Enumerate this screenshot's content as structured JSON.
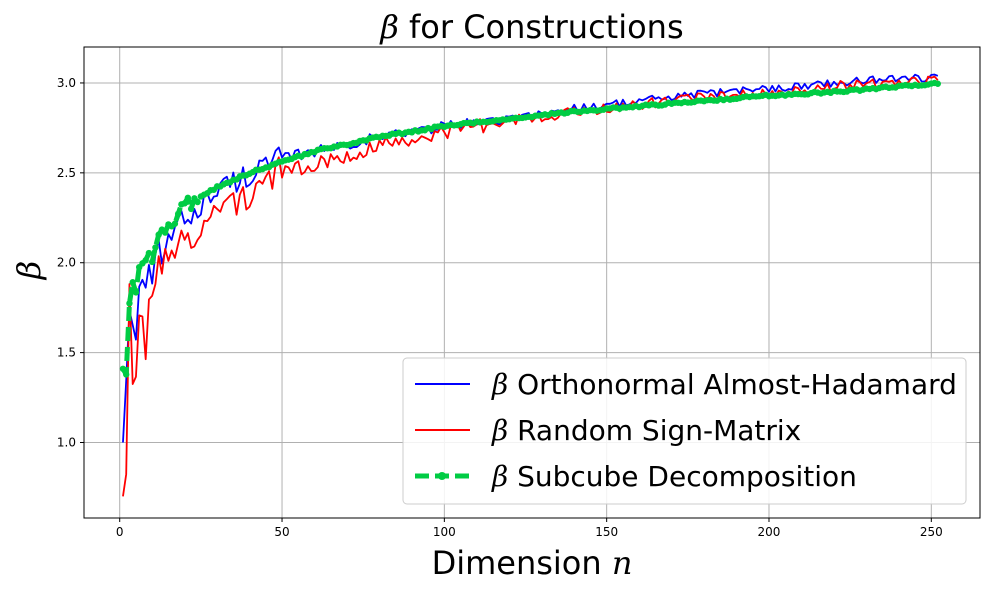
{
  "chart_data": {
    "type": "line",
    "title": {
      "symbol": "β",
      "text": " for Constructions"
    },
    "xlabel": {
      "text": "Dimension ",
      "var": "n"
    },
    "ylabel": {
      "symbol": "β"
    },
    "xlim": [
      -11,
      265
    ],
    "ylim": [
      0.58,
      3.2
    ],
    "xticks": [
      0,
      50,
      100,
      150,
      200,
      250
    ],
    "xtick_labels": [
      "0",
      "50",
      "100",
      "150",
      "200",
      "250"
    ],
    "yticks": [
      1.0,
      1.5,
      2.0,
      2.5,
      3.0
    ],
    "ytick_labels": [
      "1.0",
      "1.5",
      "2.0",
      "2.5",
      "3.0"
    ],
    "grid": true,
    "legend_position": "lower-right",
    "x_start": 1,
    "x_end": 252,
    "series": [
      {
        "name": "Orthonormal Almost-Hadamard",
        "color": "#0000ff",
        "style": "solid",
        "x": [
          1,
          2,
          3,
          4,
          5,
          6,
          8,
          10,
          12,
          15,
          20,
          25,
          30,
          40,
          50,
          60,
          70,
          80,
          100,
          120,
          140,
          160,
          180,
          200,
          220,
          240,
          252
        ],
        "y": [
          1.0,
          1.45,
          1.7,
          1.62,
          1.68,
          1.75,
          1.85,
          1.92,
          2.02,
          2.12,
          2.25,
          2.32,
          2.4,
          2.5,
          2.58,
          2.62,
          2.66,
          2.7,
          2.76,
          2.8,
          2.86,
          2.9,
          2.94,
          2.97,
          3.0,
          3.03,
          3.03
        ]
      },
      {
        "name": "Random Sign-Matrix",
        "color": "#ff0000",
        "style": "solid",
        "x": [
          1,
          2,
          3,
          4,
          5,
          6,
          8,
          10,
          12,
          15,
          20,
          25,
          30,
          40,
          50,
          60,
          70,
          80,
          100,
          120,
          140,
          160,
          180,
          200,
          220,
          240,
          252
        ],
        "y": [
          0.7,
          0.95,
          1.95,
          1.4,
          1.5,
          1.55,
          1.6,
          1.75,
          1.9,
          2.0,
          2.12,
          2.2,
          2.28,
          2.4,
          2.5,
          2.55,
          2.6,
          2.65,
          2.73,
          2.79,
          2.84,
          2.88,
          2.92,
          2.95,
          2.98,
          3.01,
          3.02
        ]
      },
      {
        "name": "Subcube Decomposition",
        "color": "#00cc44",
        "style": "dashed-markers",
        "x": [
          1,
          2,
          3,
          4,
          5,
          6,
          8,
          10,
          12,
          15,
          20,
          25,
          30,
          40,
          50,
          60,
          70,
          80,
          100,
          120,
          140,
          160,
          180,
          200,
          220,
          240,
          252
        ],
        "y": [
          1.41,
          1.41,
          1.73,
          1.85,
          1.87,
          1.93,
          2.0,
          2.05,
          2.12,
          2.23,
          2.3,
          2.37,
          2.42,
          2.5,
          2.56,
          2.62,
          2.66,
          2.7,
          2.76,
          2.8,
          2.84,
          2.87,
          2.9,
          2.93,
          2.95,
          2.98,
          3.0
        ]
      }
    ]
  }
}
